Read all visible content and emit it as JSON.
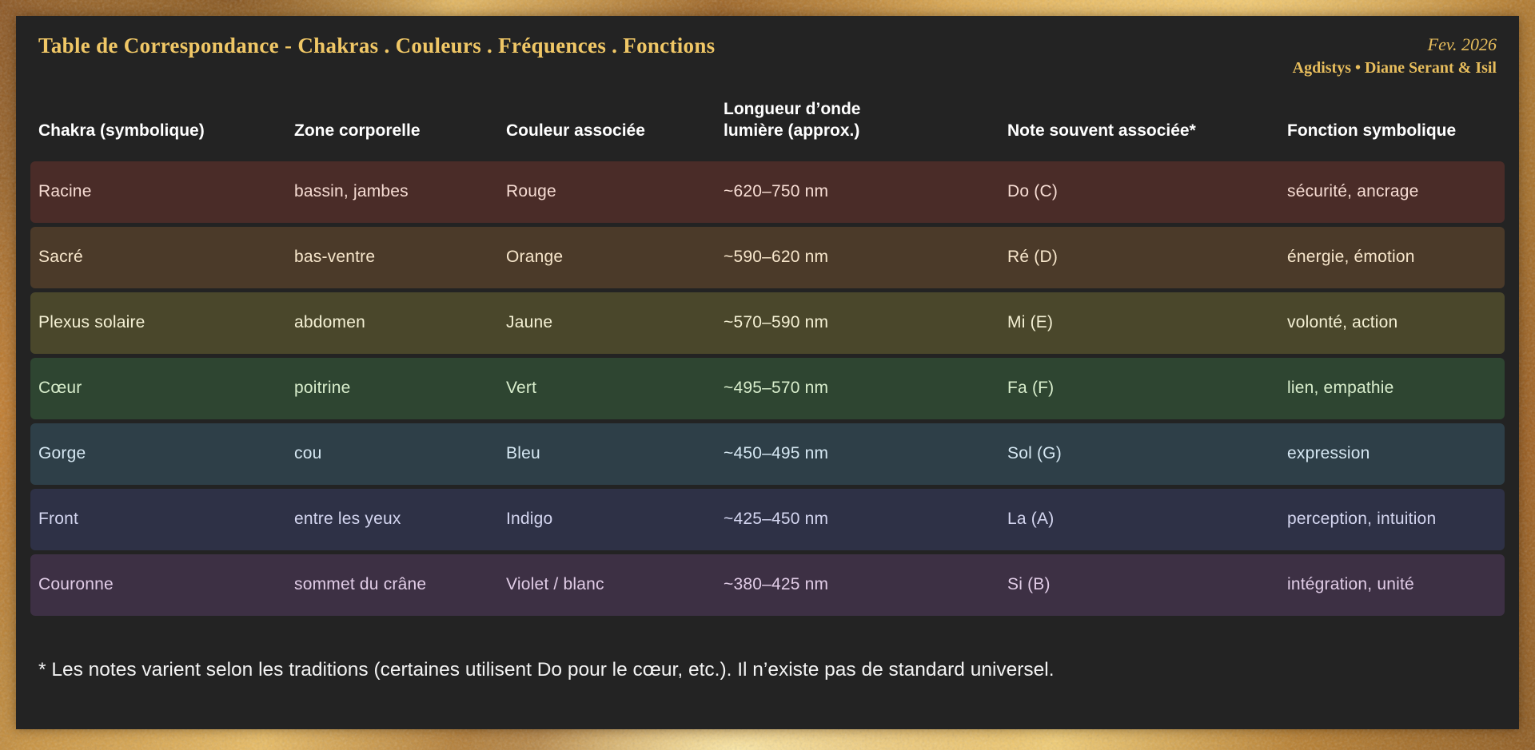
{
  "header": {
    "title": "Table de Correspondance - Chakras . Couleurs . Fréquences . Fonctions",
    "date": "Fev. 2026",
    "credit": "Agdistys • Diane Serant & Isil"
  },
  "colors": {
    "accent_gold": "#f0c766",
    "credit_gold": "#e7bd5c",
    "panel_bg": "#232323",
    "header_text": "#ffffff",
    "footnote_text": "#f2f2f2",
    "frame_gold_bright": "#f2cd74",
    "frame_gold_dark": "#8a5420"
  },
  "table": {
    "columns": [
      "Chakra (symbolique)",
      "Zone corporelle",
      "Couleur associée",
      "Longueur d’onde lumière (approx.)",
      "Note souvent associée*",
      "Fonction symbolique"
    ],
    "rows": [
      {
        "bg": "#4a2c28",
        "fg": "#f6dcd3",
        "cells": {
          "chakra": "Racine",
          "zone": "bassin, jambes",
          "couleur": "Rouge",
          "longueur": "~620–750 nm",
          "note": "Do (C)",
          "fonction": "sécurité, ancrage"
        }
      },
      {
        "bg": "#4b3a29",
        "fg": "#f7e6cb",
        "cells": {
          "chakra": "Sacré",
          "zone": "bas-ventre",
          "couleur": "Orange",
          "longueur": "~590–620 nm",
          "note": "Ré (D)",
          "fonction": "énergie, émotion"
        }
      },
      {
        "bg": "#4a472b",
        "fg": "#f4f0d4",
        "cells": {
          "chakra": "Plexus solaire",
          "zone": "abdomen",
          "couleur": "Jaune",
          "longueur": "~570–590 nm",
          "note": "Mi (E)",
          "fonction": "volonté, action"
        }
      },
      {
        "bg": "#2e4531",
        "fg": "#d8edcc",
        "cells": {
          "chakra": "Cœur",
          "zone": "poitrine",
          "couleur": "Vert",
          "longueur": "~495–570 nm",
          "note": "Fa (F)",
          "fonction": "lien, empathie"
        }
      },
      {
        "bg": "#2e3f48",
        "fg": "#d5e7f2",
        "cells": {
          "chakra": "Gorge",
          "zone": "cou",
          "couleur": "Bleu",
          "longueur": "~450–495 nm",
          "note": "Sol (G)",
          "fonction": "expression"
        }
      },
      {
        "bg": "#2e3146",
        "fg": "#d4d6f0",
        "cells": {
          "chakra": "Front",
          "zone": "entre les yeux",
          "couleur": "Indigo",
          "longueur": "~425–450 nm",
          "note": "La (A)",
          "fonction": "perception, intuition"
        }
      },
      {
        "bg": "#3d3044",
        "fg": "#e0cce6",
        "cells": {
          "chakra": "Couronne",
          "zone": "sommet du crâne",
          "couleur": "Violet / blanc",
          "longueur": "~380–425 nm",
          "note": "Si (B)",
          "fonction": "intégration, unité"
        }
      }
    ]
  },
  "footnote": "* Les notes varient selon les traditions (certaines utilisent Do pour le cœur, etc.). Il n’existe pas de standard universel."
}
